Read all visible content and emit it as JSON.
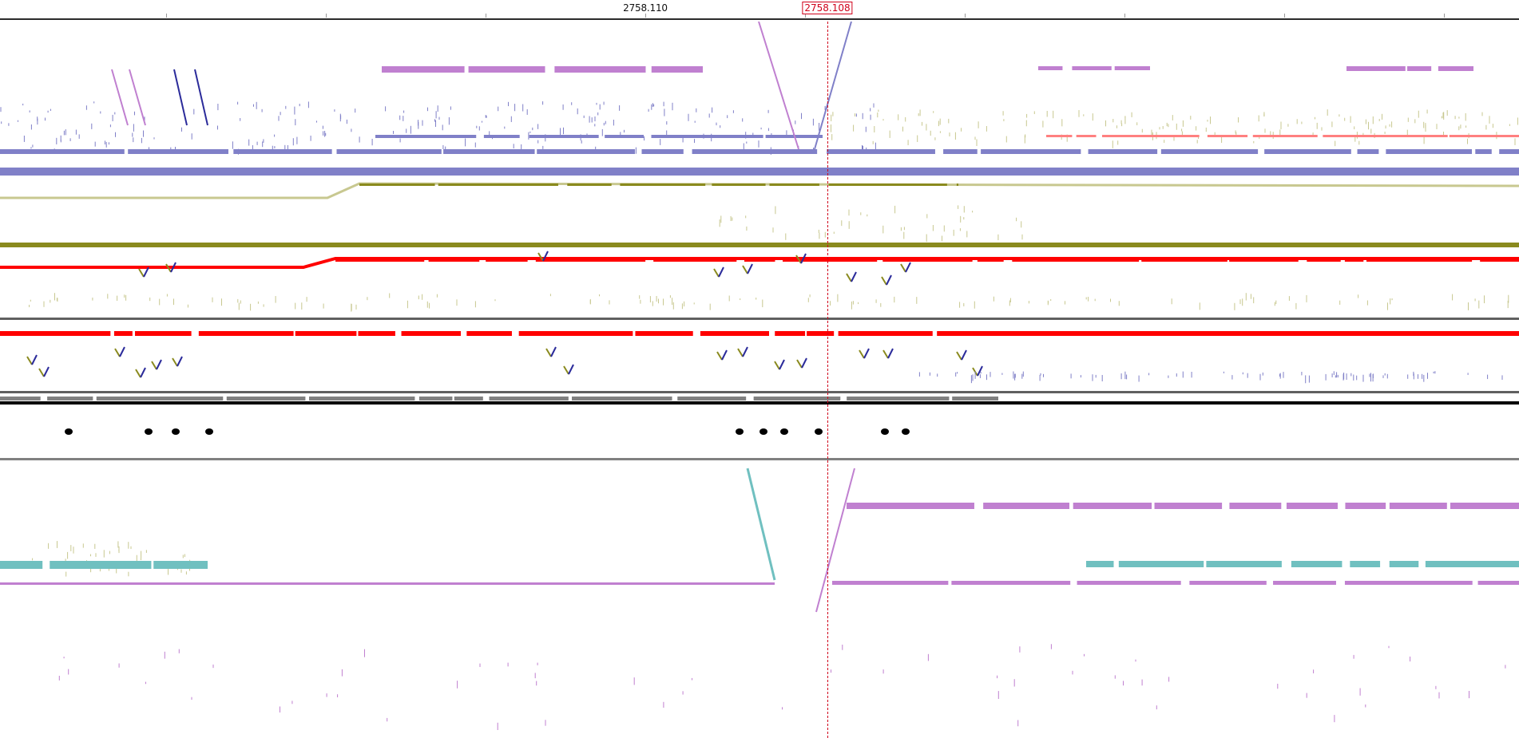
{
  "viewer": {
    "position_label": "2758.110",
    "cursor_label": "2758.108",
    "cursor_color": "#d0021b"
  },
  "colors": {
    "blue": "#8080c8",
    "blue_dark": "#2b2b9a",
    "purple": "#c080d0",
    "olive": "#8a8a1e",
    "olive_light": "#c8c890",
    "red": "#ff0000",
    "pink": "#ff8080",
    "cyan": "#70c0c0",
    "gray": "#808080",
    "black": "#000000"
  },
  "tracks": [
    {
      "name": "blue-purple-track",
      "separator_color": "#8080c8"
    },
    {
      "name": "olive-track",
      "separator_color": "#808020"
    },
    {
      "name": "red-upper-track",
      "separator_color": "#606060"
    },
    {
      "name": "red-lower-track",
      "separator_color": "#606060"
    },
    {
      "name": "grayscale-track",
      "separator_color": "#000000"
    },
    {
      "name": "purple-cyan-track",
      "separator_color": "#808080"
    }
  ]
}
